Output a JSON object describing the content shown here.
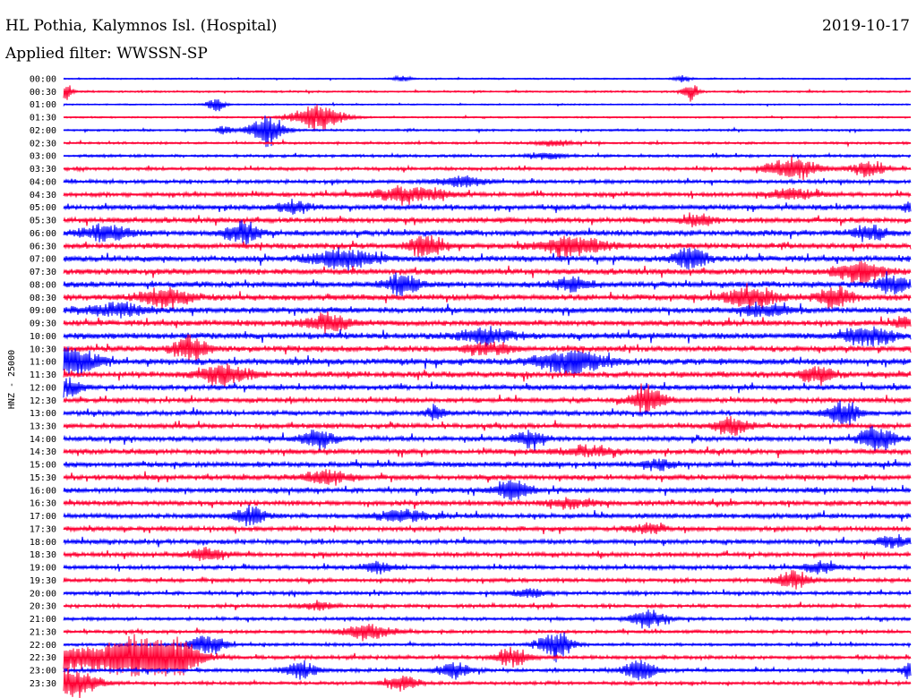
{
  "header": {
    "station": "HL Pothia, Kalymnos Isl. (Hospital)",
    "date": "2019-10-17",
    "filter": "Applied filter: WWSSN-SP"
  },
  "chart_data": {
    "type": "line",
    "title": "HL Pothia, Kalymnos Isl. (Hospital)",
    "subtitle": "Applied filter: WWSSN-SP",
    "ylabel": "HNZ - 25000",
    "xlabel": "",
    "colors": [
      "#0000ff",
      "#ff0033"
    ],
    "grid": false,
    "rows": [
      {
        "label": "00:00",
        "noise": 0.6,
        "events": [
          [
            0.4,
            3,
            0.01
          ],
          [
            0.73,
            3,
            0.01
          ]
        ]
      },
      {
        "label": "00:30",
        "noise": 0.8,
        "events": [
          [
            0.0,
            9,
            0.01
          ],
          [
            0.74,
            8,
            0.01
          ]
        ]
      },
      {
        "label": "01:00",
        "noise": 0.6,
        "events": [
          [
            0.18,
            8,
            0.01
          ]
        ]
      },
      {
        "label": "01:30",
        "noise": 0.7,
        "events": [
          [
            0.3,
            13,
            0.03
          ]
        ]
      },
      {
        "label": "02:00",
        "noise": 0.9,
        "events": [
          [
            0.24,
            15,
            0.02
          ],
          [
            0.19,
            4,
            0.01
          ]
        ]
      },
      {
        "label": "02:30",
        "noise": 1.0,
        "events": [
          [
            0.58,
            3,
            0.02
          ]
        ]
      },
      {
        "label": "03:00",
        "noise": 1.2,
        "events": [
          [
            0.57,
            4,
            0.02
          ]
        ]
      },
      {
        "label": "03:30",
        "noise": 1.4,
        "events": [
          [
            0.86,
            11,
            0.03
          ],
          [
            0.95,
            8,
            0.02
          ]
        ]
      },
      {
        "label": "04:00",
        "noise": 1.6,
        "events": [
          [
            0.47,
            5,
            0.03
          ]
        ]
      },
      {
        "label": "04:30",
        "noise": 1.9,
        "events": [
          [
            0.41,
            9,
            0.04
          ],
          [
            0.86,
            5,
            0.03
          ]
        ]
      },
      {
        "label": "05:00",
        "noise": 2.2,
        "events": [
          [
            0.27,
            6,
            0.02
          ],
          [
            1.0,
            5,
            0.01
          ]
        ]
      },
      {
        "label": "05:30",
        "noise": 2.3,
        "events": [
          [
            0.75,
            5,
            0.02
          ]
        ]
      },
      {
        "label": "06:00",
        "noise": 2.5,
        "events": [
          [
            0.05,
            8,
            0.03
          ],
          [
            0.21,
            11,
            0.02
          ],
          [
            0.95,
            7,
            0.02
          ]
        ]
      },
      {
        "label": "06:30",
        "noise": 2.4,
        "events": [
          [
            0.43,
            12,
            0.02
          ],
          [
            0.6,
            9,
            0.04
          ]
        ]
      },
      {
        "label": "07:00",
        "noise": 2.6,
        "events": [
          [
            0.33,
            9,
            0.04
          ],
          [
            0.74,
            11,
            0.02
          ]
        ]
      },
      {
        "label": "07:30",
        "noise": 2.6,
        "events": [
          [
            0.94,
            10,
            0.03
          ]
        ]
      },
      {
        "label": "08:00",
        "noise": 2.6,
        "events": [
          [
            0.4,
            11,
            0.02
          ],
          [
            0.6,
            7,
            0.02
          ],
          [
            0.98,
            9,
            0.02
          ]
        ]
      },
      {
        "label": "08:30",
        "noise": 2.6,
        "events": [
          [
            0.12,
            9,
            0.03
          ],
          [
            0.81,
            11,
            0.03
          ],
          [
            0.91,
            9,
            0.02
          ]
        ]
      },
      {
        "label": "09:00",
        "noise": 2.5,
        "events": [
          [
            0.06,
            6,
            0.04
          ],
          [
            0.83,
            6,
            0.03
          ]
        ]
      },
      {
        "label": "09:30",
        "noise": 2.5,
        "events": [
          [
            0.31,
            8,
            0.03
          ],
          [
            0.99,
            6,
            0.01
          ]
        ]
      },
      {
        "label": "10:00",
        "noise": 2.7,
        "events": [
          [
            0.5,
            8,
            0.03
          ],
          [
            0.95,
            9,
            0.03
          ]
        ]
      },
      {
        "label": "10:30",
        "noise": 2.6,
        "events": [
          [
            0.15,
            11,
            0.02
          ],
          [
            0.5,
            6,
            0.03
          ]
        ]
      },
      {
        "label": "11:00",
        "noise": 2.8,
        "events": [
          [
            0.01,
            14,
            0.03
          ],
          [
            0.6,
            12,
            0.04
          ]
        ]
      },
      {
        "label": "11:30",
        "noise": 2.6,
        "events": [
          [
            0.19,
            10,
            0.03
          ],
          [
            0.89,
            8,
            0.02
          ]
        ]
      },
      {
        "label": "12:00",
        "noise": 2.4,
        "events": [
          [
            0.0,
            10,
            0.02
          ]
        ]
      },
      {
        "label": "12:30",
        "noise": 2.2,
        "events": [
          [
            0.69,
            14,
            0.02
          ]
        ]
      },
      {
        "label": "13:00",
        "noise": 2.1,
        "events": [
          [
            0.44,
            8,
            0.01
          ],
          [
            0.92,
            12,
            0.02
          ]
        ]
      },
      {
        "label": "13:30",
        "noise": 2.1,
        "events": [
          [
            0.79,
            10,
            0.02
          ]
        ]
      },
      {
        "label": "14:00",
        "noise": 2.2,
        "events": [
          [
            0.3,
            9,
            0.02
          ],
          [
            0.55,
            7,
            0.02
          ],
          [
            0.96,
            13,
            0.02
          ]
        ]
      },
      {
        "label": "14:30",
        "noise": 2.3,
        "events": [
          [
            0.62,
            5,
            0.03
          ]
        ]
      },
      {
        "label": "15:00",
        "noise": 2.3,
        "events": [
          [
            0.7,
            5,
            0.02
          ]
        ]
      },
      {
        "label": "15:30",
        "noise": 2.3,
        "events": [
          [
            0.31,
            6,
            0.03
          ]
        ]
      },
      {
        "label": "16:00",
        "noise": 2.2,
        "events": [
          [
            0.53,
            11,
            0.02
          ]
        ]
      },
      {
        "label": "16:30",
        "noise": 2.1,
        "events": [
          [
            0.6,
            4,
            0.03
          ]
        ]
      },
      {
        "label": "17:00",
        "noise": 2.2,
        "events": [
          [
            0.22,
            9,
            0.02
          ],
          [
            0.4,
            6,
            0.03
          ]
        ]
      },
      {
        "label": "17:30",
        "noise": 2.1,
        "events": [
          [
            0.69,
            5,
            0.02
          ]
        ]
      },
      {
        "label": "18:00",
        "noise": 2.0,
        "events": [
          [
            0.98,
            6,
            0.02
          ]
        ]
      },
      {
        "label": "18:30",
        "noise": 1.9,
        "events": [
          [
            0.17,
            8,
            0.02
          ]
        ]
      },
      {
        "label": "19:00",
        "noise": 1.8,
        "events": [
          [
            0.37,
            5,
            0.02
          ],
          [
            0.89,
            5,
            0.02
          ]
        ]
      },
      {
        "label": "19:30",
        "noise": 1.7,
        "events": [
          [
            0.86,
            9,
            0.02
          ]
        ]
      },
      {
        "label": "20:00",
        "noise": 1.6,
        "events": [
          [
            0.55,
            4,
            0.02
          ]
        ]
      },
      {
        "label": "20:30",
        "noise": 1.5,
        "events": [
          [
            0.3,
            4,
            0.02
          ]
        ]
      },
      {
        "label": "21:00",
        "noise": 1.4,
        "events": [
          [
            0.69,
            9,
            0.02
          ]
        ]
      },
      {
        "label": "21:30",
        "noise": 1.4,
        "events": [
          [
            0.36,
            8,
            0.03
          ]
        ]
      },
      {
        "label": "22:00",
        "noise": 1.3,
        "events": [
          [
            0.17,
            10,
            0.02
          ],
          [
            0.58,
            14,
            0.02
          ]
        ]
      },
      {
        "label": "22:30",
        "noise": 1.6,
        "events": [
          [
            0.02,
            12,
            0.05
          ],
          [
            0.08,
            18,
            0.03
          ],
          [
            0.13,
            22,
            0.03
          ],
          [
            0.53,
            9,
            0.02
          ]
        ]
      },
      {
        "label": "23:00",
        "noise": 1.5,
        "events": [
          [
            0.28,
            9,
            0.02
          ],
          [
            0.46,
            8,
            0.02
          ],
          [
            0.68,
            10,
            0.02
          ],
          [
            1.0,
            9,
            0.01
          ]
        ]
      },
      {
        "label": "23:30",
        "noise": 1.4,
        "events": [
          [
            0.01,
            14,
            0.03
          ],
          [
            0.4,
            7,
            0.02
          ]
        ]
      }
    ]
  }
}
